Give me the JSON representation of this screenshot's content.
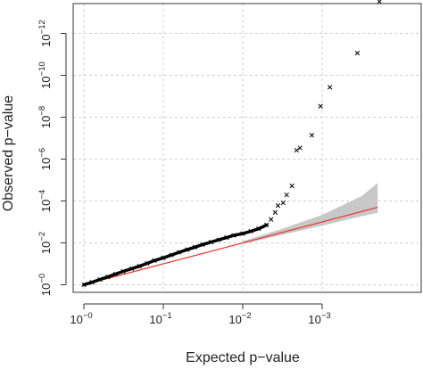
{
  "chart_data": {
    "type": "scatter",
    "title": "",
    "xlabel": "Expected p−value",
    "ylabel": "Observed p−value",
    "x_scale": "log10, reversed (-log10 p)",
    "y_scale": "log10 (-log10 p)",
    "xlim": [
      1,
      0.0002
    ],
    "ylim": [
      1,
      1e-13
    ],
    "grid": true,
    "x_ticks": [
      {
        "base": "10",
        "exp": "−0",
        "value": 1
      },
      {
        "base": "10",
        "exp": "−1",
        "value": 0.1
      },
      {
        "base": "10",
        "exp": "−2",
        "value": 0.01
      },
      {
        "base": "10",
        "exp": "−3",
        "value": 0.001
      }
    ],
    "y_ticks": [
      {
        "base": "10",
        "exp": "−0",
        "value": 1
      },
      {
        "base": "10",
        "exp": "−2",
        "value": 0.01
      },
      {
        "base": "10",
        "exp": "−4",
        "value": 0.0001
      },
      {
        "base": "10",
        "exp": "−6",
        "value": 1e-06
      },
      {
        "base": "10",
        "exp": "−8",
        "value": 1e-08
      },
      {
        "base": "10",
        "exp": "−10",
        "value": 1e-10
      },
      {
        "base": "10",
        "exp": "−12",
        "value": 1e-12
      }
    ],
    "series": [
      {
        "marker": "x",
        "color": "#000000",
        "points": [
          {
            "x": 1.0,
            "y": 1.0
          },
          {
            "x": 0.79,
            "y": 0.76
          },
          {
            "x": 0.63,
            "y": 0.56
          },
          {
            "x": 0.5,
            "y": 0.42
          },
          {
            "x": 0.4,
            "y": 0.31
          },
          {
            "x": 0.32,
            "y": 0.23
          },
          {
            "x": 0.25,
            "y": 0.17
          },
          {
            "x": 0.2,
            "y": 0.13
          },
          {
            "x": 0.16,
            "y": 0.095
          },
          {
            "x": 0.13,
            "y": 0.07
          },
          {
            "x": 0.1,
            "y": 0.052
          },
          {
            "x": 0.079,
            "y": 0.038
          },
          {
            "x": 0.063,
            "y": 0.028
          },
          {
            "x": 0.05,
            "y": 0.021
          },
          {
            "x": 0.04,
            "y": 0.016
          },
          {
            "x": 0.032,
            "y": 0.012
          },
          {
            "x": 0.025,
            "y": 0.0092
          },
          {
            "x": 0.02,
            "y": 0.0071
          },
          {
            "x": 0.016,
            "y": 0.0056
          },
          {
            "x": 0.013,
            "y": 0.0044
          },
          {
            "x": 0.01,
            "y": 0.0036
          },
          {
            "x": 0.0079,
            "y": 0.0028
          },
          {
            "x": 0.0063,
            "y": 0.0021
          },
          {
            "x": 0.005,
            "y": 0.0014
          },
          {
            "x": 0.0044,
            "y": 0.00076
          },
          {
            "x": 0.0039,
            "y": 0.00035
          },
          {
            "x": 0.0036,
            "y": 0.000166
          },
          {
            "x": 0.0031,
            "y": 0.000123
          },
          {
            "x": 0.0028,
            "y": 5.1e-05
          },
          {
            "x": 0.0024,
            "y": 1.9e-05
          },
          {
            "x": 0.0021,
            "y": 3.8e-07
          },
          {
            "x": 0.0019,
            "y": 2.9e-07
          },
          {
            "x": 0.00135,
            "y": 7.2e-08
          },
          {
            "x": 0.00105,
            "y": 3e-09
          },
          {
            "x": 0.0008,
            "y": 3.7e-10
          },
          {
            "x": 0.00036,
            "y": 8.7e-12
          },
          {
            "x": 0.00019,
            "y": 3e-14
          }
        ]
      }
    ],
    "reference_line": {
      "type": "y=x",
      "color": "#e8342a"
    },
    "confidence_band": {
      "color": "#c8c8c8",
      "from_x": 0.01,
      "upper_y": [
        {
          "x": 0.01,
          "y": 0.0083
        },
        {
          "x": 0.00316,
          "y": 0.0021
        },
        {
          "x": 0.001,
          "y": 0.00046
        },
        {
          "x": 0.000316,
          "y": 5.75e-05
        },
        {
          "x": 0.0002,
          "y": 1.38e-05
        }
      ],
      "lower_y": [
        {
          "x": 0.01,
          "y": 0.0115
        },
        {
          "x": 0.00316,
          "y": 0.0041
        },
        {
          "x": 0.001,
          "y": 0.00151
        },
        {
          "x": 0.000316,
          "y": 0.000531
        },
        {
          "x": 0.0002,
          "y": 0.000363
        }
      ]
    }
  }
}
